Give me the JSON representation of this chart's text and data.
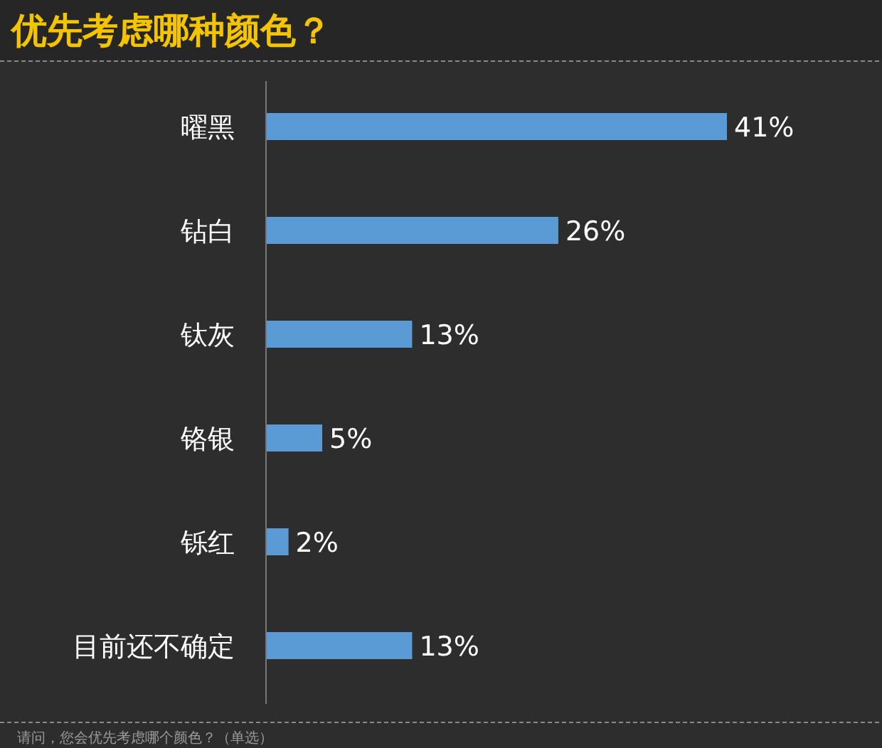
{
  "chart_data": {
    "type": "bar",
    "orientation": "horizontal",
    "title": "优先考虑哪种颜色？",
    "categories": [
      "曜黑",
      "钻白",
      "钛灰",
      "铬银",
      "铄红",
      "目前还不确定"
    ],
    "values": [
      41,
      26,
      13,
      5,
      2,
      13
    ],
    "value_labels": [
      "41%",
      "26%",
      "13%",
      "5%",
      "2%",
      "13%"
    ],
    "color": "#5b9bd5",
    "annotations": [
      "请问，您会优先考虑哪个颜色？（单选）"
    ]
  }
}
